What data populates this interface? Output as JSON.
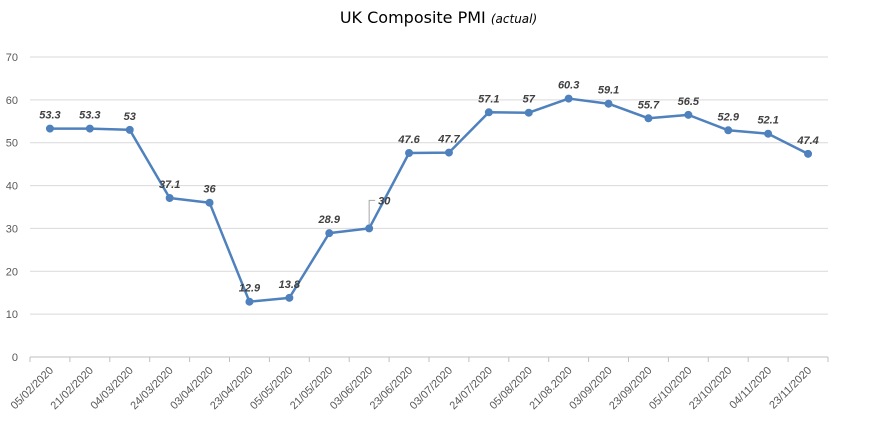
{
  "chart_data": {
    "type": "line",
    "title": "UK Composite PMI",
    "subtitle": "(actual)",
    "categories": [
      "05/02/2020",
      "21/02/2020",
      "04/03/2020",
      "24/03/2020",
      "03/04/2020",
      "23/04/2020",
      "05/05/2020",
      "21/05/2020",
      "03/06/2020",
      "23/06/2020",
      "03/07/2020",
      "24/07/2020",
      "05/08/2020",
      "21/08.2020",
      "03/09/2020",
      "23/09/2020",
      "05/10/2020",
      "23/10/2020",
      "04/11/2020",
      "23/11/2020"
    ],
    "series": [
      {
        "values": [
          53.3,
          53.3,
          53,
          37.1,
          36,
          12.9,
          13.8,
          28.9,
          30,
          47.6,
          47.7,
          57.1,
          57,
          60.3,
          59.1,
          55.7,
          56.5,
          52.9,
          52.1,
          47.4
        ],
        "labels": [
          "53.3",
          "53.3",
          "53",
          "37.1",
          "36",
          "12.9",
          "13.8",
          "28.9",
          "30",
          "47.6",
          "47.7",
          "57.1",
          "57",
          "60.3",
          "59.1",
          "55.7",
          "56.5",
          "52.9",
          "52.1",
          "47.4"
        ]
      }
    ],
    "ylim": [
      0,
      70
    ],
    "yticks": [
      "0",
      "10",
      "20",
      "30",
      "40",
      "50",
      "60",
      "70"
    ],
    "grid": true,
    "colors": {
      "line": "#4f81bd",
      "grid": "#d9d9d9",
      "axis": "#bfbfbf"
    }
  }
}
